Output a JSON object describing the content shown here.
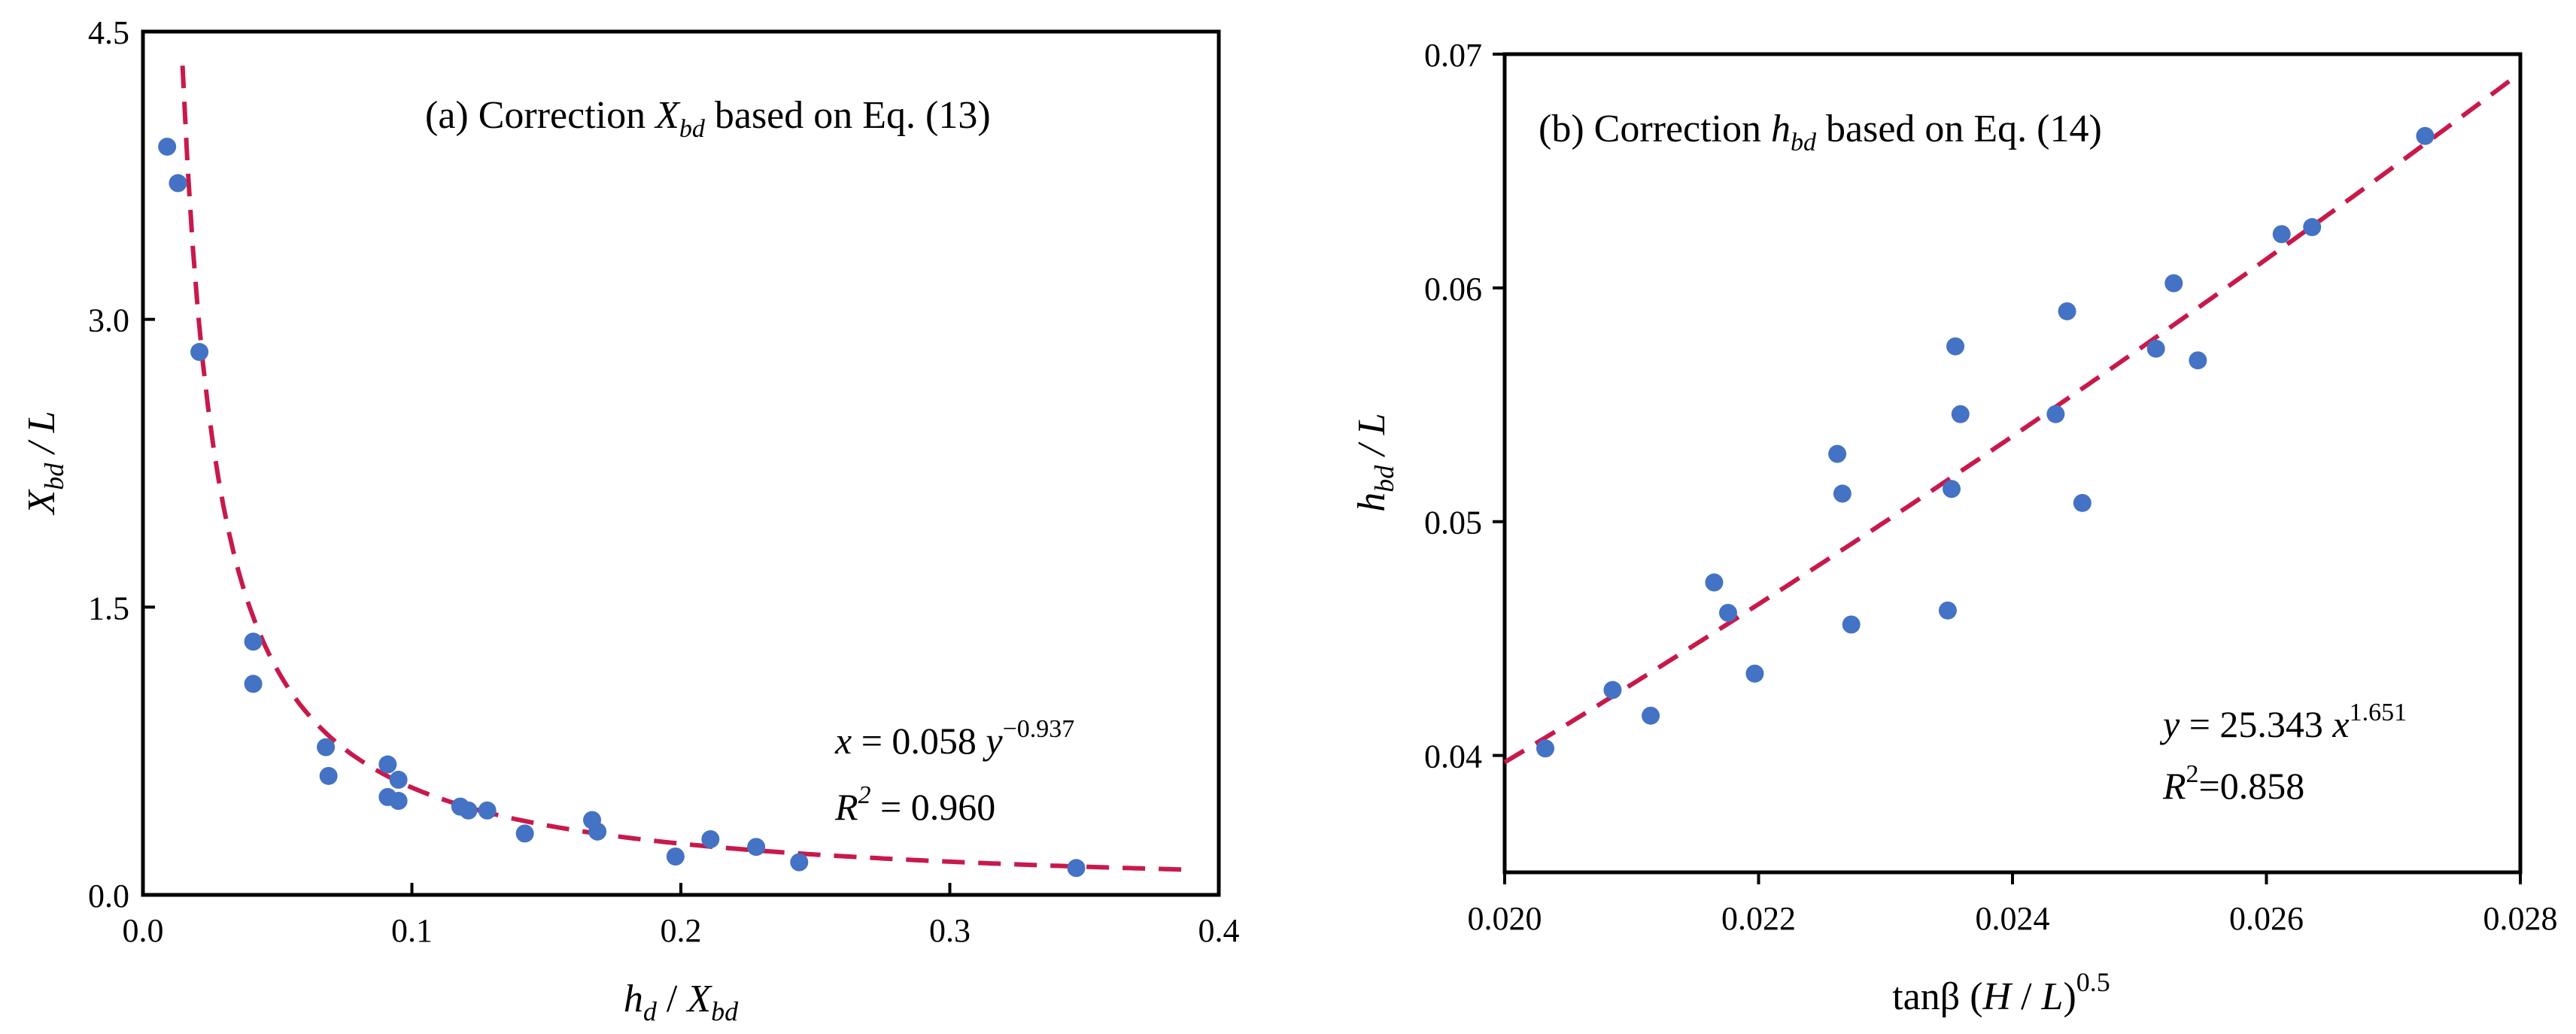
{
  "chart_data": [
    {
      "type": "scatter",
      "panel": "a",
      "title": "(a) Correction",
      "title_var": "X",
      "title_var_sub": "bd",
      "title_suffix": "based on Eq. (13)",
      "xlabel_var": "h",
      "xlabel_sub": "d",
      "xlabel_mid": " / ",
      "xlabel_var2": "X",
      "xlabel_sub2": "bd",
      "ylabel_var": "X",
      "ylabel_sub": "bd",
      "ylabel_suffix": " / L",
      "xlim": [
        0.0,
        0.4
      ],
      "ylim": [
        0.0,
        4.5
      ],
      "xticks": [
        0.0,
        0.1,
        0.2,
        0.3,
        0.4
      ],
      "xtick_labels": [
        "0.0",
        "0.1",
        "0.2",
        "0.3",
        "0.4"
      ],
      "yticks": [
        0.0,
        1.5,
        3.0,
        4.5
      ],
      "ytick_labels": [
        "0.0",
        "1.5",
        "3.0",
        "4.5"
      ],
      "points": [
        [
          0.009,
          3.9
        ],
        [
          0.013,
          3.71
        ],
        [
          0.021,
          2.83
        ],
        [
          0.041,
          1.32
        ],
        [
          0.041,
          1.1
        ],
        [
          0.068,
          0.77
        ],
        [
          0.069,
          0.62
        ],
        [
          0.091,
          0.68
        ],
        [
          0.091,
          0.51
        ],
        [
          0.095,
          0.6
        ],
        [
          0.095,
          0.49
        ],
        [
          0.118,
          0.46
        ],
        [
          0.121,
          0.44
        ],
        [
          0.128,
          0.44
        ],
        [
          0.142,
          0.32
        ],
        [
          0.167,
          0.39
        ],
        [
          0.169,
          0.33
        ],
        [
          0.198,
          0.2
        ],
        [
          0.211,
          0.29
        ],
        [
          0.228,
          0.25
        ],
        [
          0.244,
          0.17
        ],
        [
          0.347,
          0.14
        ]
      ],
      "fit": {
        "a": 0.058,
        "b": -0.937,
        "x_range": [
          0.009,
          0.39
        ]
      },
      "equation_lhs": "x",
      "equation_rhs": " = 0.058 ",
      "equation_var": "y",
      "equation_exp": "−0.937",
      "r2_label": "R",
      "r2_exp": "2",
      "r2_value": " = 0.960",
      "marker_color": "#4472c4",
      "fit_color": "#c8194b"
    },
    {
      "type": "scatter",
      "panel": "b",
      "title": "(b) Correction",
      "title_var": "h",
      "title_var_sub": "bd",
      "title_suffix": "based on Eq. (14)",
      "xlabel": "tanβ (",
      "xlabel_var": "H",
      "xlabel_mid": " / ",
      "xlabel_var2": "L",
      "xlabel_close": ")",
      "xlabel_exp": "0.5",
      "ylabel_var": "h",
      "ylabel_sub": "bd",
      "ylabel_suffix": " / L",
      "xlim": [
        0.02,
        0.028
      ],
      "ylim": [
        0.035,
        0.07
      ],
      "xticks": [
        0.02,
        0.022,
        0.024,
        0.026,
        0.028
      ],
      "xtick_labels": [
        "0.020",
        "0.022",
        "0.024",
        "0.026",
        "0.028"
      ],
      "yticks": [
        0.04,
        0.05,
        0.06,
        0.07
      ],
      "ytick_labels": [
        "0.04",
        "0.05",
        "0.06",
        "0.07"
      ],
      "points": [
        [
          0.02032,
          0.0403
        ],
        [
          0.02085,
          0.0428
        ],
        [
          0.02115,
          0.0417
        ],
        [
          0.02165,
          0.0474
        ],
        [
          0.02176,
          0.0461
        ],
        [
          0.02197,
          0.0435
        ],
        [
          0.02262,
          0.0529
        ],
        [
          0.02266,
          0.0512
        ],
        [
          0.02273,
          0.0456
        ],
        [
          0.02349,
          0.0462
        ],
        [
          0.02352,
          0.0514
        ],
        [
          0.02355,
          0.0575
        ],
        [
          0.02359,
          0.0546
        ],
        [
          0.02434,
          0.0546
        ],
        [
          0.02443,
          0.059
        ],
        [
          0.02455,
          0.0508
        ],
        [
          0.02513,
          0.0574
        ],
        [
          0.02527,
          0.0602
        ],
        [
          0.02546,
          0.0569
        ],
        [
          0.02612,
          0.0623
        ],
        [
          0.02636,
          0.0626
        ],
        [
          0.02725,
          0.0665
        ]
      ],
      "fit": {
        "a": 25.343,
        "b": 1.651,
        "x_range": [
          0.02,
          0.028
        ]
      },
      "equation_lhs": "y",
      "equation_rhs": " = 25.343 ",
      "equation_var": "x",
      "equation_exp": "1.651",
      "r2_label": "R",
      "r2_exp": "2",
      "r2_value": "=0.858",
      "marker_color": "#4472c4",
      "fit_color": "#c8194b"
    }
  ]
}
